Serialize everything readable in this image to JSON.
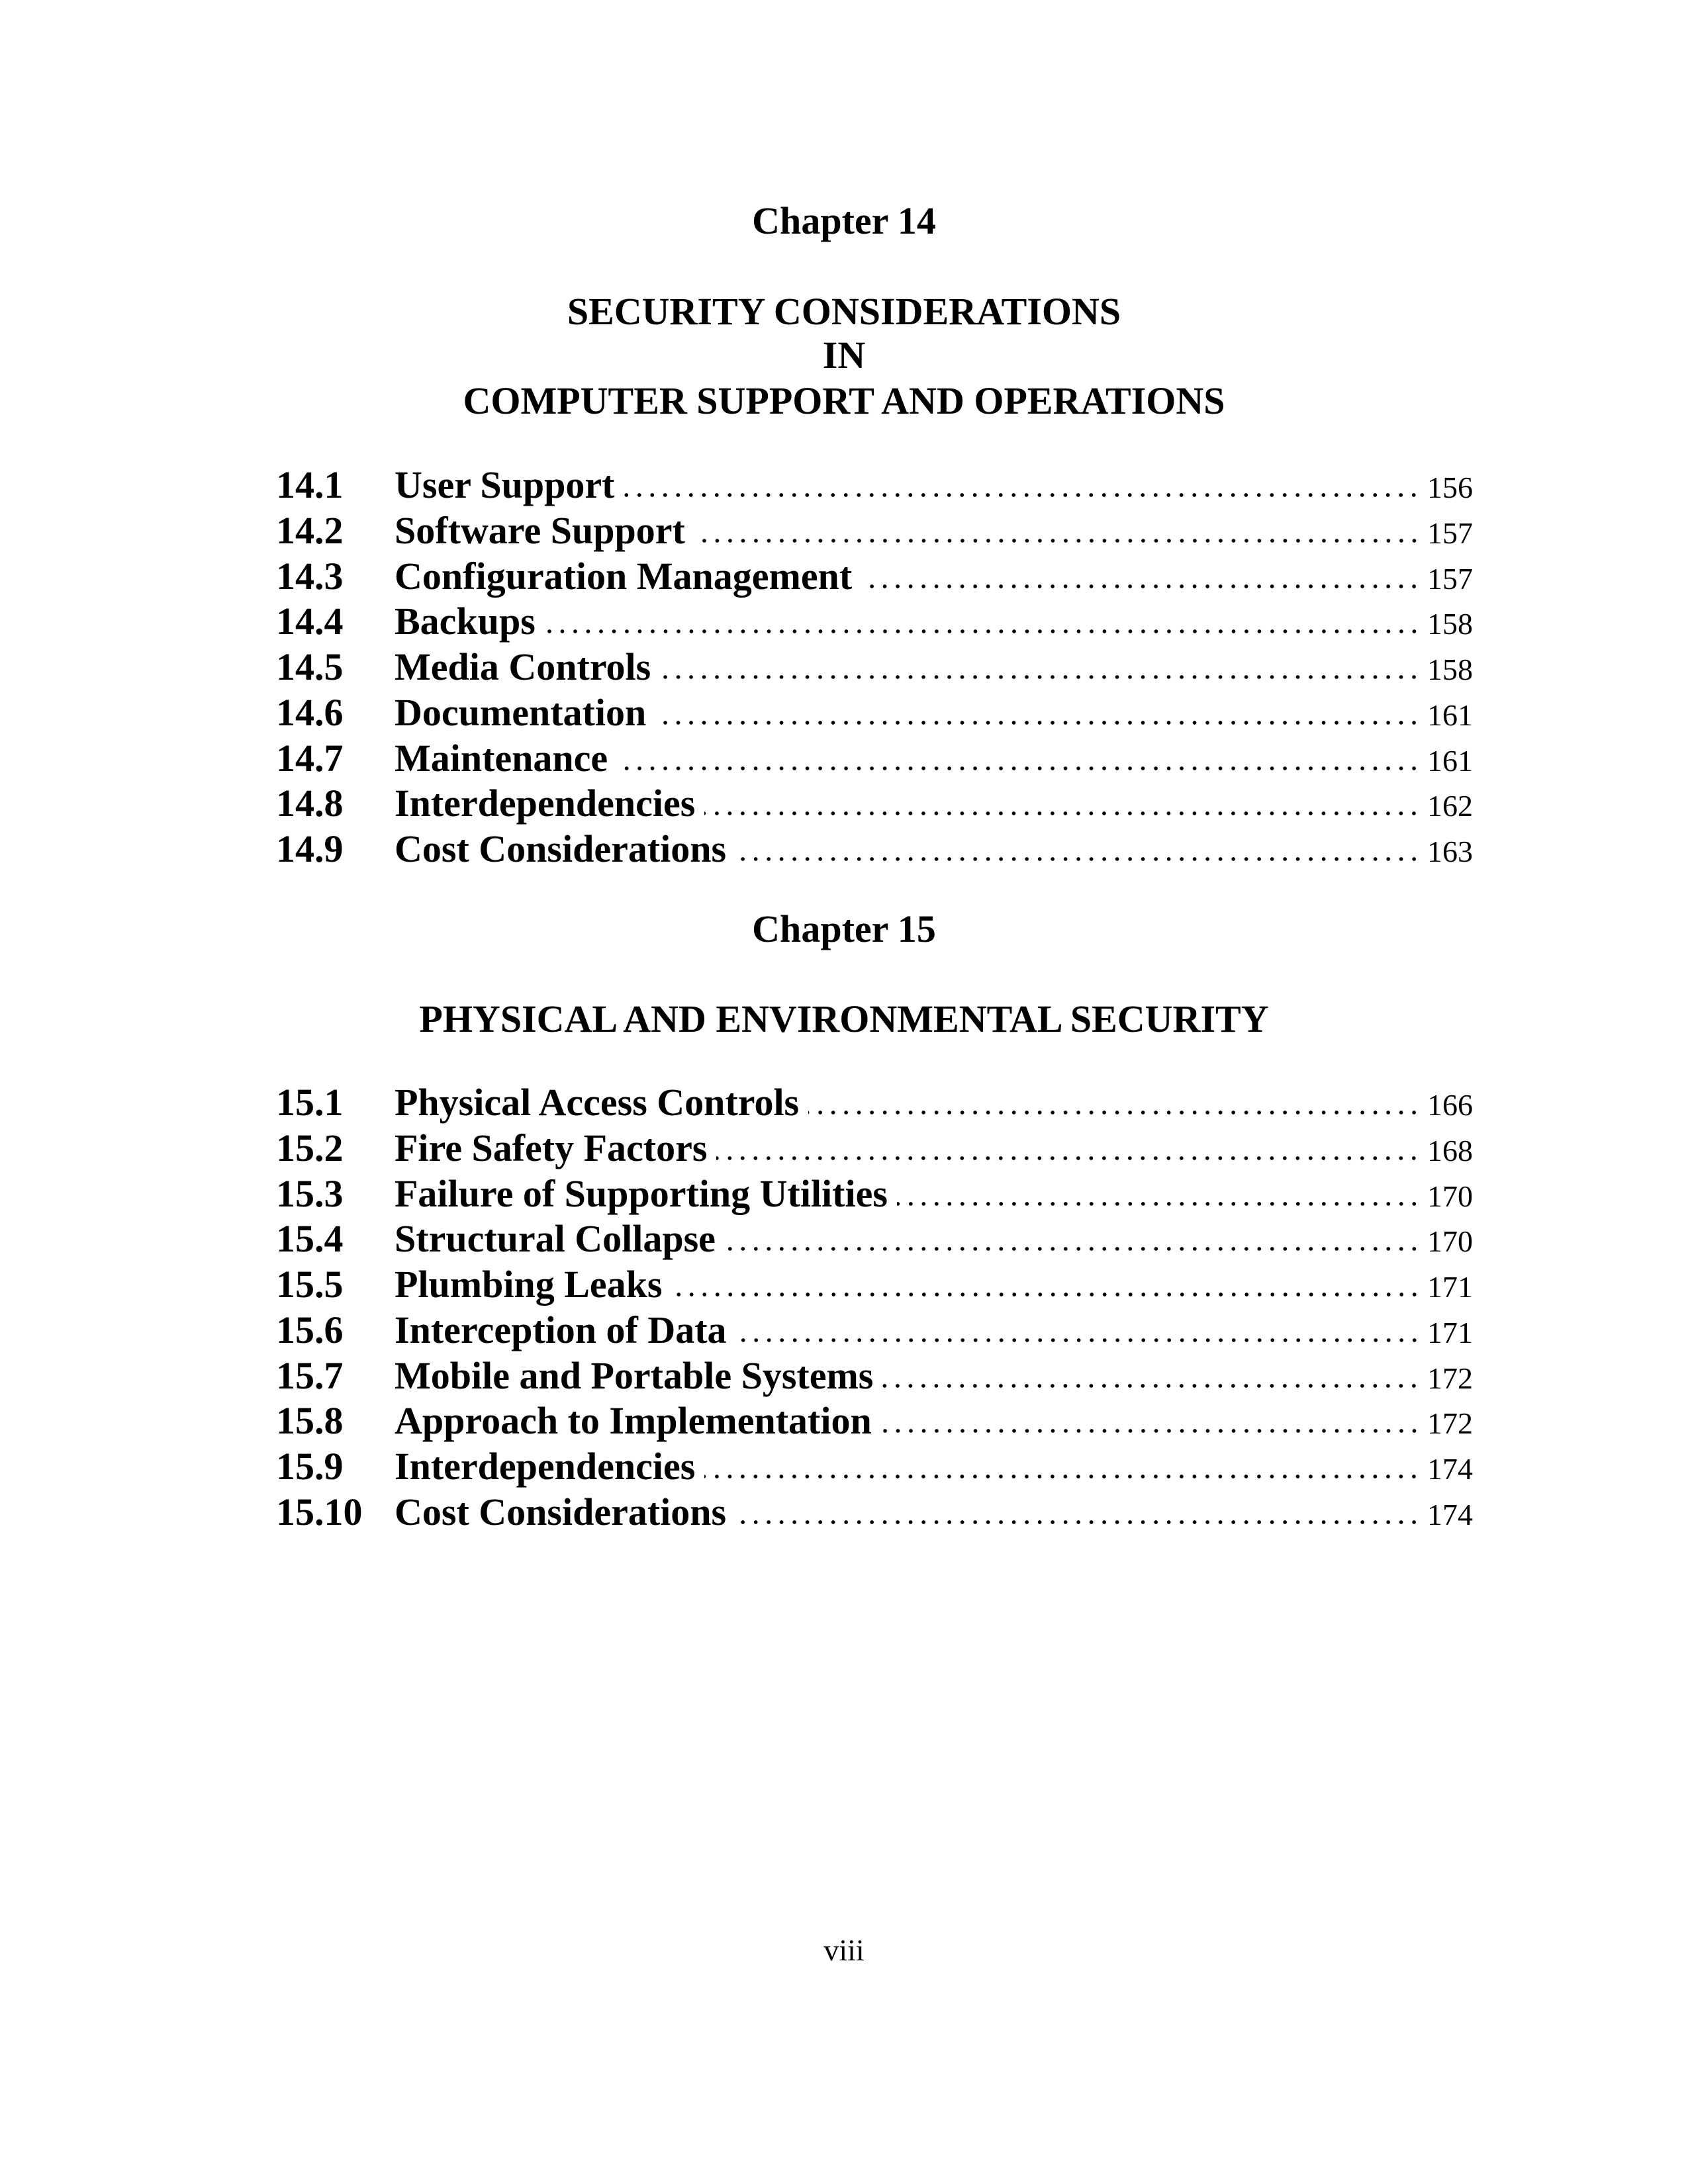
{
  "chapters": [
    {
      "chapter_label": "Chapter 14",
      "title_lines": [
        "SECURITY CONSIDERATIONS",
        "IN",
        "COMPUTER SUPPORT AND OPERATIONS"
      ],
      "entries": [
        {
          "number": "14.1",
          "title": "User Support",
          "page": "156"
        },
        {
          "number": "14.2",
          "title": "Software Support",
          "page": "157"
        },
        {
          "number": "14.3",
          "title": "Configuration Management",
          "page": "157"
        },
        {
          "number": "14.4",
          "title": "Backups",
          "page": "158"
        },
        {
          "number": "14.5",
          "title": "Media Controls",
          "page": "158"
        },
        {
          "number": "14.6",
          "title": "Documentation",
          "page": "161"
        },
        {
          "number": "14.7",
          "title": "Maintenance",
          "page": "161"
        },
        {
          "number": "14.8",
          "title": "Interdependencies",
          "page": "162"
        },
        {
          "number": "14.9",
          "title": "Cost Considerations",
          "page": "163"
        }
      ]
    },
    {
      "chapter_label": "Chapter 15",
      "title_lines": [
        "PHYSICAL AND ENVIRONMENTAL SECURITY"
      ],
      "entries": [
        {
          "number": "15.1",
          "title": "Physical Access Controls",
          "page": "166"
        },
        {
          "number": "15.2",
          "title": "Fire Safety Factors",
          "page": "168"
        },
        {
          "number": "15.3",
          "title": "Failure of Supporting Utilities",
          "page": "170"
        },
        {
          "number": "15.4",
          "title": "Structural Collapse",
          "page": "170"
        },
        {
          "number": "15.5",
          "title": "Plumbing Leaks",
          "page": "171"
        },
        {
          "number": "15.6",
          "title": "Interception of Data",
          "page": "171"
        },
        {
          "number": "15.7",
          "title": "Mobile and Portable Systems",
          "page": "172"
        },
        {
          "number": "15.8",
          "title": "Approach to Implementation",
          "page": "172"
        },
        {
          "number": "15.9",
          "title": "Interdependencies",
          "page": "174"
        },
        {
          "number": "15.10",
          "title": "Cost Considerations",
          "page": "174"
        }
      ]
    }
  ],
  "footer": {
    "page_number": "viii"
  }
}
